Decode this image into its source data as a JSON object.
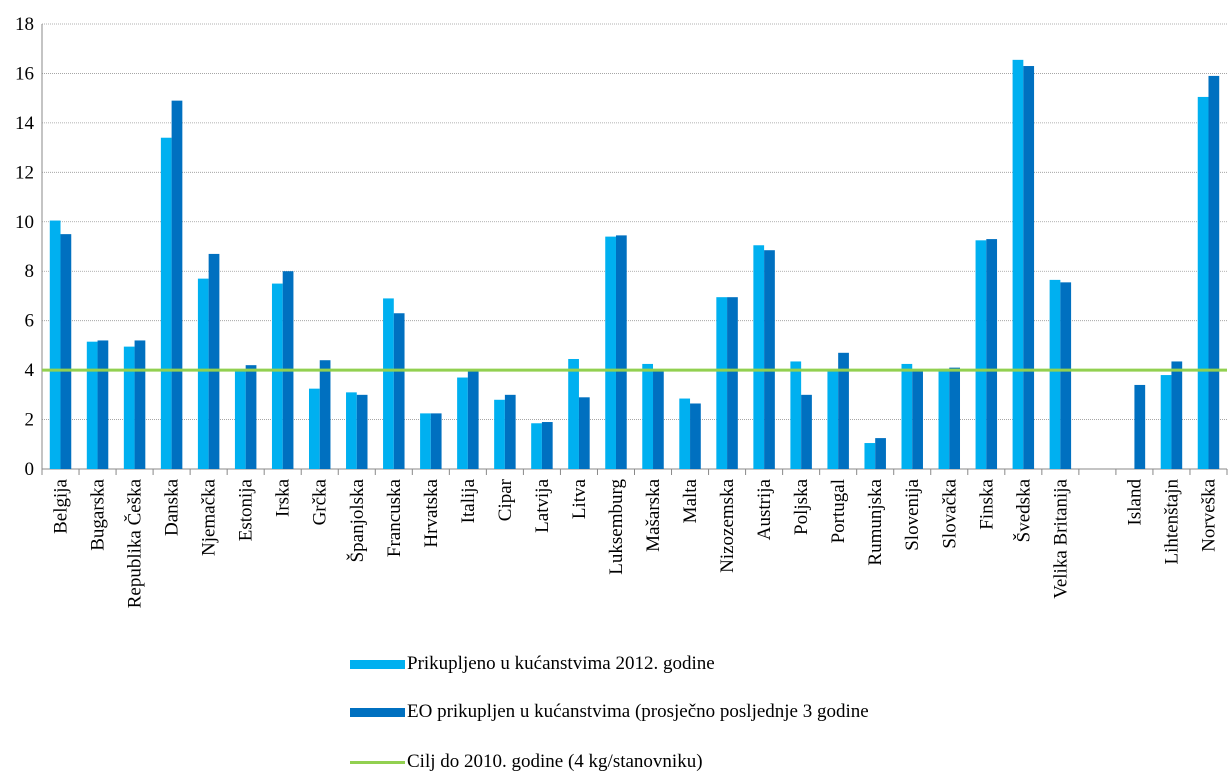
{
  "chart_data": {
    "type": "bar",
    "categories": [
      "Belgija",
      "Bugarska",
      "Republika Češka",
      "Danska",
      "Njemačka",
      "Estonija",
      "Irska",
      "Grčka",
      "Španjolska",
      "Francuska",
      "Hrvatska",
      "Italija",
      "Cipar",
      "Latvija",
      "Litva",
      "Luksemburg",
      "Mašarska",
      "Malta",
      "Nizozemska",
      "Austrija",
      "Poljska",
      "Portugal",
      "Rumunjska",
      "Slovenija",
      "Slovačka",
      "Finska",
      "Švedska",
      "Velika Britanija",
      null,
      "Island",
      "Lihtenštajn",
      "Norveška"
    ],
    "series": [
      {
        "name": "Prikupljeno u kućanstvima 2012. godine",
        "color": "#00b0f0",
        "values": [
          10.05,
          5.15,
          4.95,
          13.4,
          7.7,
          4.0,
          7.5,
          3.25,
          3.1,
          6.9,
          2.25,
          3.7,
          2.8,
          1.85,
          4.45,
          9.4,
          4.25,
          2.85,
          6.95,
          9.05,
          4.35,
          3.95,
          1.05,
          4.25,
          4.05,
          9.25,
          16.55,
          7.65,
          null,
          null,
          3.8,
          15.05
        ]
      },
      {
        "name": "EO prikupljen u kućanstvima (prosječno posljednje 3 godine",
        "color": "#0070c0",
        "values": [
          9.5,
          5.2,
          5.2,
          14.9,
          8.7,
          4.2,
          8.0,
          4.4,
          3.0,
          6.3,
          2.25,
          3.95,
          3.0,
          1.9,
          2.9,
          9.45,
          3.95,
          2.65,
          6.95,
          8.85,
          3.0,
          4.7,
          1.25,
          3.95,
          4.1,
          9.3,
          16.3,
          7.55,
          null,
          3.4,
          4.35,
          15.9
        ]
      }
    ],
    "target": {
      "name": "Cilj do 2010. godine (4 kg/stanovniku)",
      "value": 4,
      "color": "#92d050"
    },
    "ylim": [
      0,
      18
    ],
    "yticks": [
      0,
      2,
      4,
      6,
      8,
      10,
      12,
      14,
      16,
      18
    ],
    "grid": true
  }
}
